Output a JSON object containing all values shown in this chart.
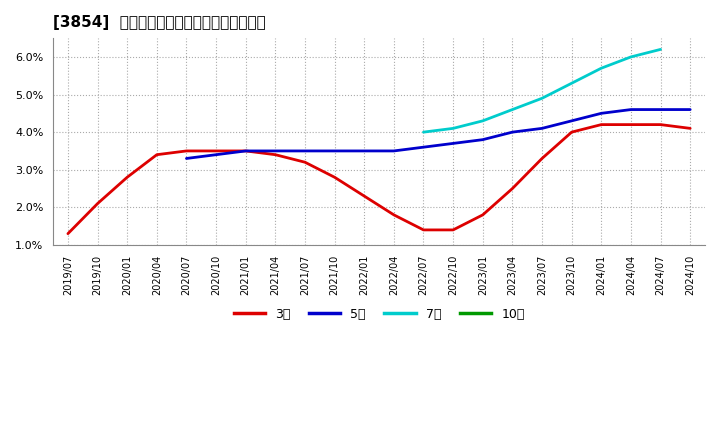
{
  "title": "[3854]  経常利益マージンの標準偏差の推移",
  "background_color": "#ffffff",
  "plot_bg_color": "#ffffff",
  "grid_color": "#aaaaaa",
  "ylim": [
    0.01,
    0.065
  ],
  "yticks": [
    0.01,
    0.02,
    0.03,
    0.04,
    0.05,
    0.06
  ],
  "series": {
    "3年": {
      "color": "#dd0000",
      "x": [
        "2019/07",
        "2019/10",
        "2020/01",
        "2020/04",
        "2020/07",
        "2020/10",
        "2021/01",
        "2021/04",
        "2021/07",
        "2021/10",
        "2022/01",
        "2022/04",
        "2022/07",
        "2022/10",
        "2023/01",
        "2023/04",
        "2023/07",
        "2023/10",
        "2024/01",
        "2024/04",
        "2024/07",
        "2024/10"
      ],
      "y": [
        0.013,
        0.021,
        0.028,
        0.034,
        0.035,
        0.035,
        0.035,
        0.034,
        0.032,
        0.028,
        0.023,
        0.018,
        0.014,
        0.014,
        0.018,
        0.025,
        0.033,
        0.04,
        0.042,
        0.042,
        0.042,
        0.041
      ]
    },
    "5年": {
      "color": "#0000cc",
      "x": [
        "2019/07",
        "2019/10",
        "2020/01",
        "2020/04",
        "2020/07",
        "2020/10",
        "2021/01",
        "2021/04",
        "2021/07",
        "2021/10",
        "2022/01",
        "2022/04",
        "2022/07",
        "2022/10",
        "2023/01",
        "2023/04",
        "2023/07",
        "2023/10",
        "2024/01",
        "2024/04",
        "2024/07",
        "2024/10"
      ],
      "y": [
        null,
        null,
        null,
        null,
        0.033,
        0.034,
        0.035,
        0.035,
        0.035,
        0.035,
        0.035,
        0.035,
        0.036,
        0.037,
        0.038,
        0.04,
        0.041,
        0.043,
        0.045,
        0.046,
        0.046,
        0.046
      ]
    },
    "7年": {
      "color": "#00cccc",
      "x": [
        "2019/07",
        "2019/10",
        "2020/01",
        "2020/04",
        "2020/07",
        "2020/10",
        "2021/01",
        "2021/04",
        "2021/07",
        "2021/10",
        "2022/01",
        "2022/04",
        "2022/07",
        "2022/10",
        "2023/01",
        "2023/04",
        "2023/07",
        "2023/10",
        "2024/01",
        "2024/04",
        "2024/07",
        "2024/10"
      ],
      "y": [
        null,
        null,
        null,
        null,
        null,
        null,
        null,
        null,
        null,
        null,
        null,
        null,
        0.04,
        0.041,
        0.043,
        0.046,
        0.049,
        0.053,
        0.057,
        0.06,
        0.062,
        null
      ]
    },
    "10年": {
      "color": "#009900",
      "x": [],
      "y": []
    }
  },
  "legend_labels": [
    "3年",
    "5年",
    "7年",
    "10年"
  ],
  "legend_colors": [
    "#dd0000",
    "#0000cc",
    "#00cccc",
    "#009900"
  ],
  "xtick_labels": [
    "2019/07",
    "2019/10",
    "2020/01",
    "2020/04",
    "2020/07",
    "2020/10",
    "2021/01",
    "2021/04",
    "2021/07",
    "2021/10",
    "2022/01",
    "2022/04",
    "2022/07",
    "2022/10",
    "2023/01",
    "2023/04",
    "2023/07",
    "2023/10",
    "2024/01",
    "2024/04",
    "2024/07",
    "2024/10"
  ]
}
